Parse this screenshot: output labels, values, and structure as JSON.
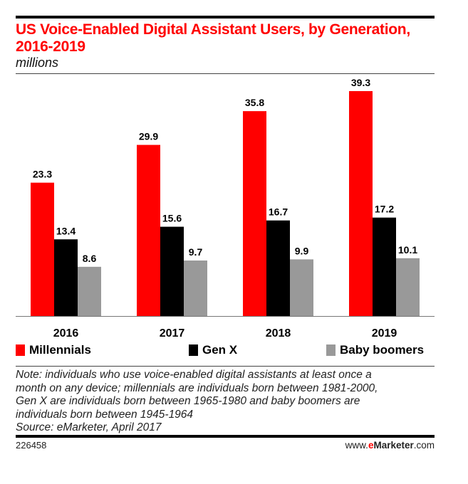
{
  "chart_data": {
    "type": "bar",
    "title": "US Voice-Enabled Digital Assistant Users, by Generation, 2016-2019",
    "subtitle": "millions",
    "categories": [
      "2016",
      "2017",
      "2018",
      "2019"
    ],
    "series": [
      {
        "name": "Millennials",
        "color": "#ff0000",
        "values": [
          23.3,
          29.9,
          35.8,
          39.3
        ]
      },
      {
        "name": "Gen X",
        "color": "#000000",
        "values": [
          13.4,
          15.6,
          16.7,
          17.2
        ]
      },
      {
        "name": "Baby boomers",
        "color": "#999999",
        "values": [
          8.6,
          9.7,
          9.9,
          10.1
        ]
      }
    ],
    "ylim": [
      0,
      39.3
    ],
    "grid": false,
    "legend": "bottom"
  },
  "note": [
    "Note: individuals who use voice-enabled digital assistants at least once a",
    "month on any device; millennials are individuals born between 1981-2000,",
    "Gen X are individuals born between 1965-1980 and baby boomers are",
    "individuals born between 1945-1964",
    "Source: eMarketer, April 2017"
  ],
  "footer": {
    "id": "226458",
    "brand_prefix": "www.",
    "brand_e": "e",
    "brand_name": "Marketer",
    "brand_suffix": ".com"
  }
}
